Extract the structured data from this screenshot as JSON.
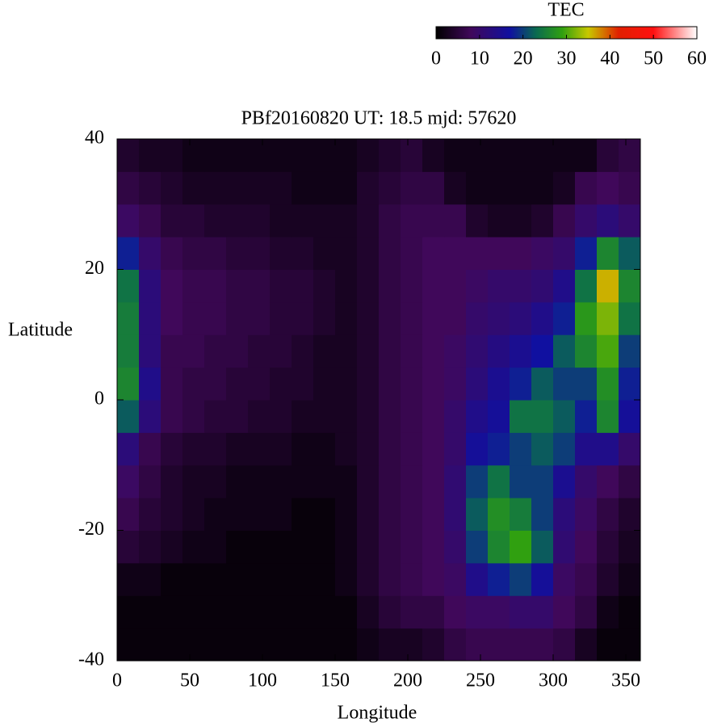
{
  "chart_data": {
    "type": "heatmap",
    "title": "PBf20160820  UT: 18.5  mjd: 57620",
    "x_label": "Longitude",
    "y_label": "Latitude",
    "colorbar_label": "TEC",
    "xlim": [
      0,
      360
    ],
    "ylim": [
      -40,
      40
    ],
    "xticks": [
      0,
      50,
      100,
      150,
      200,
      250,
      300,
      350
    ],
    "yticks": [
      -40,
      -20,
      0,
      20,
      40
    ],
    "zlim": [
      0,
      60
    ],
    "zticks": [
      0,
      10,
      20,
      30,
      40,
      50,
      60
    ],
    "colorscale": [
      [
        0,
        "#000000"
      ],
      [
        8,
        "#40085a"
      ],
      [
        17,
        "#1010a0"
      ],
      [
        23,
        "#0a6a50"
      ],
      [
        29,
        "#30a010"
      ],
      [
        35,
        "#c8c800"
      ],
      [
        42,
        "#e02000"
      ],
      [
        50,
        "#ff1010"
      ],
      [
        60,
        "#ffffff"
      ]
    ],
    "x": [
      7.5,
      22.5,
      37.5,
      52.5,
      67.5,
      82.5,
      97.5,
      112.5,
      127.5,
      142.5,
      157.5,
      172.5,
      187.5,
      202.5,
      217.5,
      232.5,
      247.5,
      262.5,
      277.5,
      292.5,
      307.5,
      322.5,
      337.5,
      352.5
    ],
    "y": [
      -37.5,
      -32.5,
      -27.5,
      -22.5,
      -17.5,
      -12.5,
      -7.5,
      -2.5,
      2.5,
      7.5,
      12.5,
      17.5,
      22.5,
      27.5,
      32.5,
      37.5
    ],
    "z": [
      [
        1,
        1,
        1,
        1,
        1,
        1,
        1,
        1,
        1,
        1,
        1,
        2,
        3,
        3,
        4,
        6,
        7,
        7,
        7,
        7,
        6,
        3,
        1,
        1
      ],
      [
        1,
        1,
        1,
        1,
        1,
        1,
        1,
        1,
        1,
        1,
        1,
        3,
        5,
        6,
        6,
        8,
        9,
        9,
        10,
        10,
        8,
        6,
        2,
        1
      ],
      [
        2,
        2,
        1,
        1,
        1,
        1,
        1,
        1,
        1,
        1,
        2,
        4,
        6,
        7,
        8,
        9,
        14,
        18,
        20,
        16,
        9,
        7,
        4,
        2
      ],
      [
        5,
        4,
        3,
        2,
        2,
        1,
        1,
        1,
        1,
        1,
        2,
        4,
        6,
        7,
        8,
        10,
        20,
        26,
        29,
        22,
        11,
        8,
        5,
        3
      ],
      [
        7,
        5,
        4,
        3,
        2,
        2,
        2,
        2,
        1,
        1,
        2,
        4,
        6,
        7,
        8,
        11,
        22,
        27,
        25,
        20,
        12,
        9,
        6,
        4
      ],
      [
        9,
        6,
        4,
        3,
        3,
        2,
        2,
        2,
        2,
        2,
        2,
        4,
        6,
        7,
        8,
        11,
        20,
        24,
        20,
        20,
        15,
        10,
        8,
        6
      ],
      [
        12,
        7,
        5,
        4,
        4,
        3,
        3,
        3,
        2,
        2,
        3,
        4,
        6,
        7,
        8,
        10,
        16,
        18,
        20,
        22,
        20,
        14,
        14,
        10
      ],
      [
        22,
        12,
        7,
        6,
        5,
        5,
        4,
        4,
        3,
        3,
        3,
        4,
        6,
        7,
        8,
        10,
        14,
        16,
        24,
        24,
        22,
        18,
        26,
        16
      ],
      [
        26,
        14,
        7,
        6,
        6,
        5,
        5,
        4,
        4,
        3,
        3,
        4,
        6,
        7,
        8,
        9,
        12,
        15,
        18,
        22,
        20,
        20,
        27,
        18
      ],
      [
        25,
        12,
        7,
        7,
        6,
        6,
        5,
        5,
        4,
        3,
        3,
        4,
        6,
        7,
        8,
        9,
        11,
        13,
        15,
        17,
        22,
        26,
        30,
        20
      ],
      [
        25,
        12,
        8,
        7,
        7,
        6,
        6,
        5,
        5,
        4,
        3,
        4,
        6,
        7,
        8,
        8,
        10,
        11,
        12,
        14,
        18,
        28,
        32,
        24
      ],
      [
        24,
        12,
        8,
        7,
        7,
        6,
        6,
        5,
        5,
        4,
        3,
        4,
        6,
        7,
        8,
        8,
        9,
        10,
        10,
        11,
        14,
        24,
        36,
        26
      ],
      [
        18,
        10,
        7,
        6,
        6,
        5,
        5,
        4,
        4,
        3,
        3,
        4,
        6,
        7,
        8,
        8,
        8,
        8,
        8,
        9,
        10,
        18,
        26,
        22
      ],
      [
        9,
        7,
        5,
        5,
        4,
        4,
        4,
        3,
        3,
        3,
        3,
        4,
        6,
        7,
        7,
        7,
        4,
        3,
        3,
        4,
        7,
        10,
        12,
        10
      ],
      [
        6,
        5,
        4,
        3,
        3,
        3,
        3,
        3,
        2,
        2,
        2,
        4,
        5,
        6,
        6,
        3,
        2,
        2,
        2,
        2,
        3,
        7,
        8,
        7
      ],
      [
        4,
        3,
        3,
        2,
        2,
        2,
        2,
        2,
        2,
        2,
        2,
        3,
        4,
        5,
        3,
        2,
        2,
        2,
        2,
        2,
        2,
        2,
        5,
        6
      ]
    ]
  }
}
